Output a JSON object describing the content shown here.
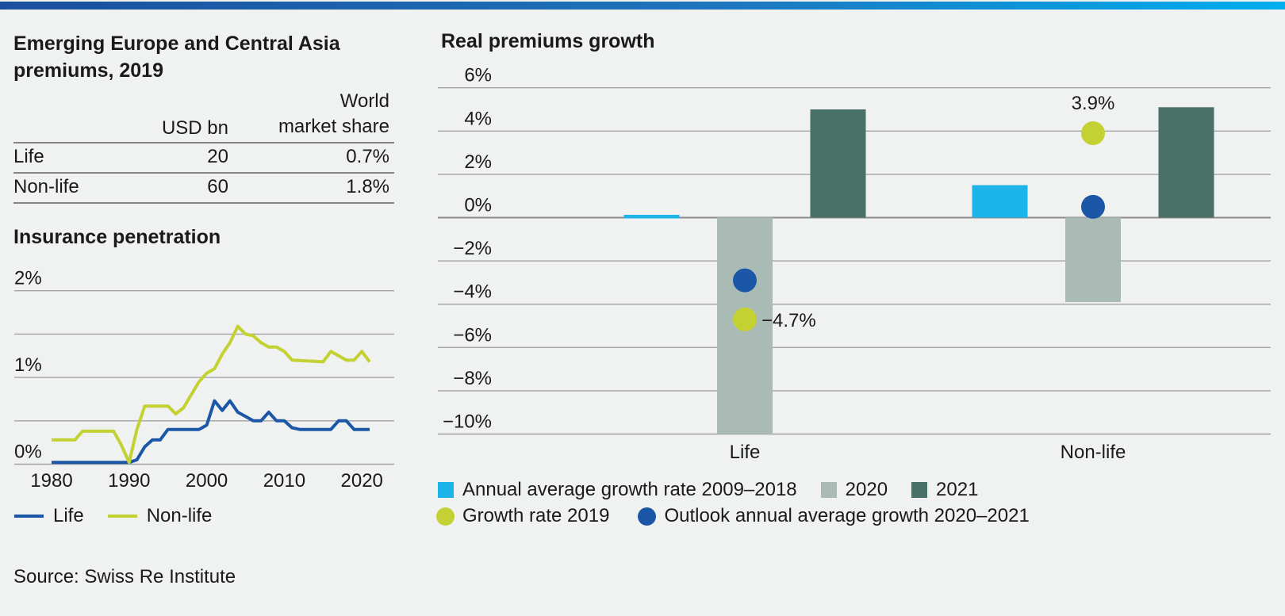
{
  "topbar": {
    "gradient_left": "#1a4f9c",
    "gradient_mid": "#1e74bd",
    "gradient_right": "#00aeef"
  },
  "colors": {
    "background": "#f0f1f1",
    "text": "#1a1a1a",
    "gridline": "#a2a2a2",
    "zero_axis": "#8c8c8c",
    "table_rule": "#858585"
  },
  "left_panel": {
    "title_line1": "Emerging Europe and Central Asia",
    "title_line2": "premiums, 2019",
    "table": {
      "col2_header": "USD bn",
      "col3_header_line1": "World",
      "col3_header_line2": "market share",
      "rows": [
        {
          "label": "Life",
          "usd_bn": "20",
          "world_market_share": "0.7%"
        },
        {
          "label": "Non-life",
          "usd_bn": "60",
          "world_market_share": "1.8%"
        }
      ]
    },
    "source": "Source: Swiss Re Institute"
  },
  "chart_data": [
    {
      "id": "insurance_penetration",
      "type": "line",
      "title": "Insurance penetration",
      "xlim": [
        1980,
        2021
      ],
      "ylim": [
        0,
        2
      ],
      "x_ticks": [
        1980,
        1990,
        2000,
        2010,
        2020
      ],
      "y_ticks": [
        {
          "v": 2,
          "label": "2%"
        },
        {
          "v": 1,
          "label": "1%"
        },
        {
          "v": 0,
          "label": "0%"
        }
      ],
      "gridlines": [
        2,
        1.5,
        1,
        0.5,
        0
      ],
      "grid": true,
      "legend_position": "bottom",
      "series": [
        {
          "name": "Life",
          "color": "#1c57a7",
          "points": [
            [
              1980,
              0.02
            ],
            [
              1990,
              0.02
            ],
            [
              1991,
              0.05
            ],
            [
              1992,
              0.2
            ],
            [
              1993,
              0.28
            ],
            [
              1994,
              0.28
            ],
            [
              1995,
              0.4
            ],
            [
              1999,
              0.4
            ],
            [
              2000,
              0.45
            ],
            [
              2001,
              0.73
            ],
            [
              2002,
              0.62
            ],
            [
              2003,
              0.73
            ],
            [
              2004,
              0.6
            ],
            [
              2005,
              0.55
            ],
            [
              2006,
              0.5
            ],
            [
              2007,
              0.5
            ],
            [
              2008,
              0.6
            ],
            [
              2009,
              0.5
            ],
            [
              2010,
              0.5
            ],
            [
              2011,
              0.42
            ],
            [
              2012,
              0.4
            ],
            [
              2016,
              0.4
            ],
            [
              2017,
              0.5
            ],
            [
              2018,
              0.5
            ],
            [
              2019,
              0.4
            ],
            [
              2021,
              0.4
            ]
          ]
        },
        {
          "name": "Non-life",
          "color": "#c3d232",
          "points": [
            [
              1980,
              0.28
            ],
            [
              1983,
              0.28
            ],
            [
              1984,
              0.38
            ],
            [
              1988,
              0.38
            ],
            [
              1989,
              0.22
            ],
            [
              1990,
              0.02
            ],
            [
              1991,
              0.4
            ],
            [
              1992,
              0.67
            ],
            [
              1995,
              0.67
            ],
            [
              1996,
              0.58
            ],
            [
              1997,
              0.65
            ],
            [
              1998,
              0.8
            ],
            [
              1999,
              0.95
            ],
            [
              2000,
              1.05
            ],
            [
              2001,
              1.1
            ],
            [
              2002,
              1.27
            ],
            [
              2003,
              1.4
            ],
            [
              2004,
              1.59
            ],
            [
              2005,
              1.5
            ],
            [
              2006,
              1.48
            ],
            [
              2007,
              1.4
            ],
            [
              2008,
              1.35
            ],
            [
              2009,
              1.35
            ],
            [
              2010,
              1.3
            ],
            [
              2011,
              1.2
            ],
            [
              2015,
              1.18
            ],
            [
              2016,
              1.3
            ],
            [
              2018,
              1.2
            ],
            [
              2019,
              1.2
            ],
            [
              2020,
              1.3
            ],
            [
              2021,
              1.18
            ]
          ]
        }
      ]
    },
    {
      "id": "real_premiums_growth",
      "type": "bar",
      "title": "Real premiums growth",
      "ylim": [
        -10,
        6
      ],
      "grid": true,
      "legend_position": "bottom",
      "y_ticks": [
        {
          "v": 6,
          "label": "6%"
        },
        {
          "v": 4,
          "label": "4%"
        },
        {
          "v": 2,
          "label": "2%"
        },
        {
          "v": 0,
          "label": "0%"
        },
        {
          "v": -2,
          "label": "−2%"
        },
        {
          "v": -4,
          "label": "−4%"
        },
        {
          "v": -6,
          "label": "−6%"
        },
        {
          "v": -8,
          "label": "−8%"
        },
        {
          "v": -10,
          "label": "−10%"
        }
      ],
      "categories": [
        "Life",
        "Non-life"
      ],
      "series": [
        {
          "name": "Annual average growth rate 2009–2018",
          "type": "bar",
          "color": "#1db4e9",
          "values": [
            0.1,
            1.5
          ]
        },
        {
          "name": "2020",
          "type": "bar",
          "color": "#a9bbb4",
          "values": [
            -10,
            -3.9
          ]
        },
        {
          "name": "2021",
          "type": "bar",
          "color": "#4a7168",
          "values": [
            5.0,
            5.1
          ]
        },
        {
          "name": "Growth rate 2019",
          "type": "dot",
          "color": "#c3d232",
          "values": [
            -4.7,
            3.9
          ]
        },
        {
          "name": "Outlook annual average growth 2020–2021",
          "type": "dot",
          "color": "#1c57a7",
          "values": [
            -2.9,
            0.5
          ]
        }
      ],
      "annotations": [
        {
          "text": "−4.7%",
          "category": "Life",
          "series": "Growth rate 2019",
          "placement": "right"
        },
        {
          "text": "3.9%",
          "category": "Non-life",
          "series": "Growth rate 2019",
          "placement": "above"
        }
      ]
    }
  ]
}
